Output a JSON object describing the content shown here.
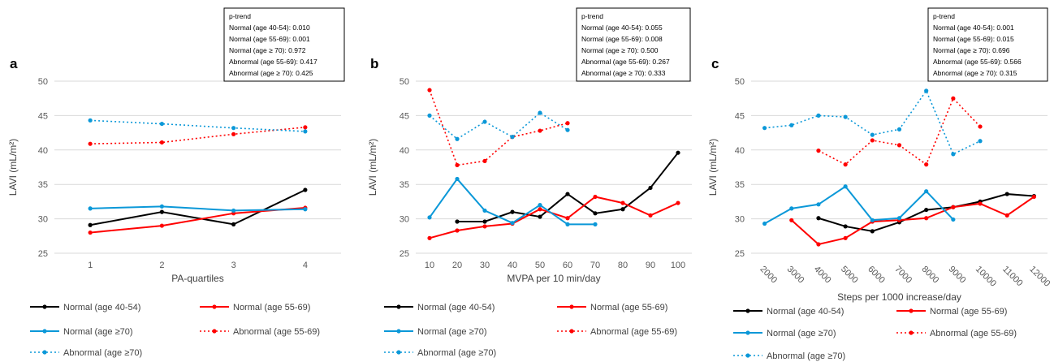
{
  "chart_data": [
    {
      "type": "line",
      "panel": "a",
      "xlabel": "PA-quartiles",
      "ylabel": "LAVI (mL/m²)",
      "ylim": [
        25,
        50
      ],
      "yticks": [
        25,
        30,
        35,
        40,
        45,
        50
      ],
      "categories": [
        "1",
        "2",
        "3",
        "4"
      ],
      "grid": true,
      "ptrend": {
        "title": "p-trend",
        "lines": [
          "Normal (age 40-54): 0.010",
          "Normal (age 55-69): 0.001",
          "Normal (age ≥ 70): 0.972",
          "Abnormal (age 55-69): 0.417",
          "Abnormal (age ≥ 70): 0.425"
        ]
      },
      "series": [
        {
          "name": "Normal (age 40-54)",
          "color": "#000000",
          "style": "solid",
          "values": [
            29.1,
            31.0,
            29.2,
            34.2
          ]
        },
        {
          "name": "Normal (age 55-69)",
          "color": "#ff0000",
          "style": "solid",
          "values": [
            28.0,
            29.0,
            30.8,
            31.6
          ]
        },
        {
          "name": "Normal (age ≥70)",
          "color": "#0b98d8",
          "style": "solid",
          "values": [
            31.5,
            31.8,
            31.2,
            31.4
          ]
        },
        {
          "name": "Abnormal (age 55-69)",
          "color": "#ff0000",
          "style": "dotted",
          "values": [
            40.9,
            41.1,
            42.3,
            43.3
          ]
        },
        {
          "name": "Abnormal (age ≥70)",
          "color": "#0b98d8",
          "style": "dotted",
          "values": [
            44.3,
            43.8,
            43.2,
            42.7
          ]
        }
      ]
    },
    {
      "type": "line",
      "panel": "b",
      "xlabel": "MVPA per 10 min/day",
      "ylabel": "LAVI (mL/m²)",
      "ylim": [
        25,
        50
      ],
      "yticks": [
        25,
        30,
        35,
        40,
        45,
        50
      ],
      "categories": [
        "10",
        "20",
        "30",
        "40",
        "50",
        "60",
        "70",
        "80",
        "90",
        "100"
      ],
      "grid": true,
      "ptrend": {
        "title": "p-trend",
        "lines": [
          "Normal (age 40-54): 0.055",
          "Normal (age 55-69): 0.008",
          "Normal (age ≥ 70): 0.500",
          "Abnormal (age 55-69): 0.267",
          "Abnormal (age ≥ 70): 0.333"
        ]
      },
      "series": [
        {
          "name": "Normal (age 40-54)",
          "color": "#000000",
          "style": "solid",
          "values": [
            null,
            29.6,
            29.6,
            31.0,
            30.3,
            33.6,
            30.8,
            31.4,
            34.5,
            39.6
          ]
        },
        {
          "name": "Normal (age 55-69)",
          "color": "#ff0000",
          "style": "solid",
          "values": [
            27.2,
            28.3,
            28.9,
            29.3,
            31.4,
            30.1,
            33.2,
            32.3,
            30.5,
            32.3
          ]
        },
        {
          "name": "Normal (age ≥70)",
          "color": "#0b98d8",
          "style": "solid",
          "values": [
            30.2,
            35.8,
            31.2,
            29.4,
            32.0,
            29.2,
            29.2,
            null,
            null,
            null
          ]
        },
        {
          "name": "Abnormal (age 55-69)",
          "color": "#ff0000",
          "style": "dotted",
          "values": [
            48.7,
            37.8,
            38.4,
            41.9,
            42.8,
            43.9,
            null,
            null,
            null,
            null
          ]
        },
        {
          "name": "Abnormal (age ≥70)",
          "color": "#0b98d8",
          "style": "dotted",
          "values": [
            45.0,
            41.6,
            44.1,
            41.9,
            45.4,
            42.9,
            null,
            null,
            null,
            null
          ]
        }
      ]
    },
    {
      "type": "line",
      "panel": "c",
      "xlabel": "Steps per 1000 increase/day",
      "ylabel": "LAVI (mL/m²)",
      "ylim": [
        25,
        50
      ],
      "yticks": [
        25,
        30,
        35,
        40,
        45,
        50
      ],
      "categories": [
        "2000",
        "3000",
        "4000",
        "5000",
        "6000",
        "7000",
        "8000",
        "9000",
        "10000",
        "11000",
        "12000"
      ],
      "grid": true,
      "ptrend": {
        "title": "p-trend",
        "lines": [
          "Normal (age 40-54): 0.001",
          "Normal (age 55-69): 0.015",
          "Normal (age ≥ 70): 0.696",
          "Abnormal (age 55-69): 0.566",
          "Abnormal (age ≥ 70): 0.315"
        ]
      },
      "series": [
        {
          "name": "Normal (age 40-54)",
          "color": "#000000",
          "style": "solid",
          "values": [
            null,
            null,
            30.1,
            28.9,
            28.2,
            29.5,
            31.3,
            31.7,
            32.5,
            33.6,
            33.3
          ]
        },
        {
          "name": "Normal (age 55-69)",
          "color": "#ff0000",
          "style": "solid",
          "values": [
            null,
            29.8,
            26.3,
            27.2,
            29.6,
            29.8,
            30.1,
            31.7,
            32.2,
            30.5,
            33.2
          ]
        },
        {
          "name": "Normal (age ≥70)",
          "color": "#0b98d8",
          "style": "solid",
          "values": [
            29.3,
            31.5,
            32.1,
            34.7,
            29.8,
            30.1,
            34.0,
            29.9,
            null,
            null,
            null
          ]
        },
        {
          "name": "Abnormal (age 55-69)",
          "color": "#ff0000",
          "style": "dotted",
          "values": [
            null,
            null,
            39.9,
            37.9,
            41.4,
            40.7,
            37.9,
            47.5,
            43.4,
            null,
            null
          ]
        },
        {
          "name": "Abnormal (age ≥70)",
          "color": "#0b98d8",
          "style": "dotted",
          "values": [
            43.2,
            43.6,
            45.0,
            44.8,
            42.2,
            43.0,
            48.6,
            39.4,
            41.3,
            null,
            null
          ]
        }
      ]
    }
  ]
}
